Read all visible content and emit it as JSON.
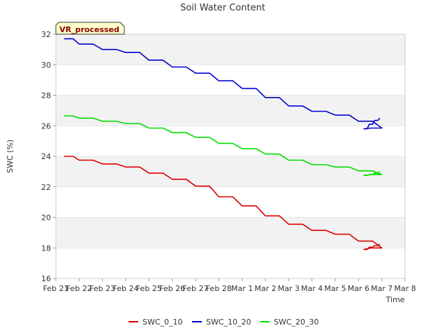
{
  "chart_data": {
    "type": "line",
    "title": "Soil Water Content",
    "xlabel": "Time",
    "ylabel": "SWC (%)",
    "badge": "VR_processed",
    "x_ticks": [
      "Feb 21",
      "Feb 22",
      "Feb 23",
      "Feb 24",
      "Feb 25",
      "Feb 26",
      "Feb 27",
      "Feb 28",
      "Mar 1",
      "Mar 2",
      "Mar 3",
      "Mar 4",
      "Mar 5",
      "Mar 6",
      "Mar 7",
      "Mar 8"
    ],
    "ylim": [
      16,
      32
    ],
    "y_ticks": [
      16,
      18,
      20,
      22,
      24,
      26,
      28,
      30,
      32
    ],
    "grid": "horizontal bands",
    "legend_position": "bottom",
    "x": [
      "Feb 21",
      "Feb 22",
      "Feb 23",
      "Feb 24",
      "Feb 25",
      "Feb 26",
      "Feb 27",
      "Feb 28",
      "Mar 1",
      "Mar 2",
      "Mar 3",
      "Mar 4",
      "Mar 5",
      "Mar 6",
      "Mar 7"
    ],
    "series": [
      {
        "name": "SWC_0_10",
        "color": "#dd0000",
        "values": [
          24.0,
          23.75,
          23.5,
          23.3,
          22.9,
          22.5,
          22.05,
          21.35,
          20.75,
          20.1,
          19.55,
          19.15,
          18.9,
          18.45,
          18.0
        ]
      },
      {
        "name": "SWC_10_20",
        "color": "#0000cc",
        "values": [
          31.7,
          31.35,
          31.0,
          30.8,
          30.3,
          29.85,
          29.45,
          28.95,
          28.45,
          27.85,
          27.3,
          26.95,
          26.7,
          26.3,
          25.85
        ]
      },
      {
        "name": "SWC_20_30",
        "color": "#00dd00",
        "values": [
          26.65,
          26.5,
          26.3,
          26.15,
          25.85,
          25.55,
          25.25,
          24.85,
          24.5,
          24.15,
          23.75,
          23.45,
          23.3,
          23.05,
          22.8
        ]
      }
    ],
    "tail_x": [
      "Mar 6",
      "Mar 7"
    ],
    "tail": {
      "SWC_0_10": [
        18.0,
        17.9,
        18.05,
        18.15,
        18.25
      ],
      "SWC_10_20": [
        25.85,
        25.8,
        26.1,
        26.35,
        26.5
      ],
      "SWC_20_30": [
        22.8,
        22.75,
        22.8,
        22.9,
        23.0
      ]
    }
  }
}
